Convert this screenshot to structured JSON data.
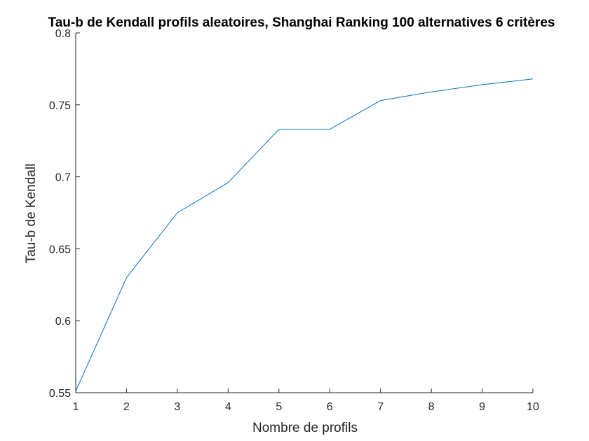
{
  "chart_data": {
    "type": "line",
    "title": "Tau-b de Kendall profils aleatoires, Shanghai Ranking 100 alternatives 6 critères",
    "xlabel": "Nombre de profils",
    "ylabel": "Tau-b de Kendall",
    "xlim": [
      1,
      10
    ],
    "ylim": [
      0.55,
      0.8
    ],
    "xticks": [
      "1",
      "2",
      "3",
      "4",
      "5",
      "6",
      "7",
      "8",
      "9",
      "10"
    ],
    "yticks": [
      "0.55",
      "0.6",
      "0.65",
      "0.7",
      "0.75",
      "0.8"
    ],
    "grid": false,
    "series": [
      {
        "color": "#0072BD",
        "x": [
          1,
          2,
          3,
          4,
          5,
          6,
          7,
          8,
          9,
          10
        ],
        "y": [
          0.551,
          0.63,
          0.675,
          0.696,
          0.733,
          0.733,
          0.753,
          0.759,
          0.764,
          0.768
        ]
      }
    ]
  }
}
